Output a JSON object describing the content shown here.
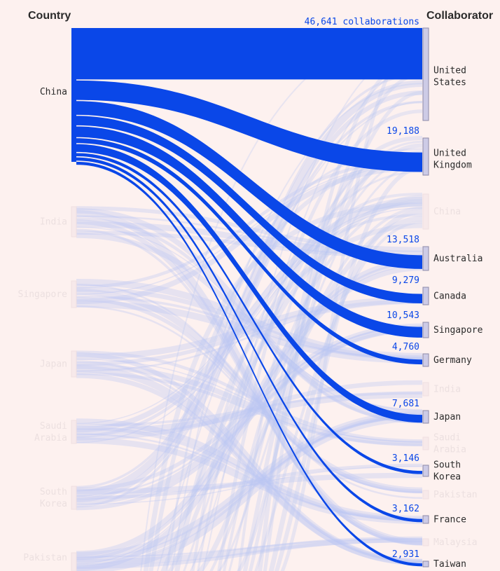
{
  "chart_data": {
    "type": "sankey",
    "headers": {
      "left": "Country",
      "right": "Collaborator"
    },
    "highlight_source": "China",
    "sources": [
      {
        "label": "China",
        "state": "active"
      },
      {
        "label": "India",
        "state": "faded"
      },
      {
        "label": "Singapore",
        "state": "faded"
      },
      {
        "label": "Japan",
        "state": "faded"
      },
      {
        "label": "Saudi\nArabia",
        "state": "faded"
      },
      {
        "label": "South\nKorea",
        "state": "faded"
      },
      {
        "label": "Pakistan",
        "state": "faded"
      }
    ],
    "targets": [
      {
        "label": "United\nStates",
        "state": "active",
        "value": 46641,
        "value_label": "46,641 collaborations"
      },
      {
        "label": "United\nKingdom",
        "state": "active",
        "value": 19188,
        "value_label": "19,188"
      },
      {
        "label": "China",
        "state": "faded"
      },
      {
        "label": "Australia",
        "state": "active",
        "value": 13518,
        "value_label": "13,518"
      },
      {
        "label": "Canada",
        "state": "active",
        "value": 9279,
        "value_label": "9,279"
      },
      {
        "label": "Singapore",
        "state": "active",
        "value": 10543,
        "value_label": "10,543"
      },
      {
        "label": "Germany",
        "state": "active",
        "value": 4760,
        "value_label": "4,760"
      },
      {
        "label": "India",
        "state": "faded"
      },
      {
        "label": "Japan",
        "state": "active",
        "value": 7681,
        "value_label": "7,681"
      },
      {
        "label": "Saudi\nArabia",
        "state": "faded"
      },
      {
        "label": "South\nKorea",
        "state": "active",
        "value": 3146,
        "value_label": "3,146"
      },
      {
        "label": "Pakistan",
        "state": "faded"
      },
      {
        "label": "France",
        "state": "active",
        "value": 3162,
        "value_label": "3,162"
      },
      {
        "label": "Malaysia",
        "state": "faded"
      },
      {
        "label": "Taiwan",
        "state": "active",
        "value": 2931,
        "value_label": "2,931"
      }
    ],
    "colors": {
      "background": "#fdf1ef",
      "active_flow": "#0a47e8",
      "faded_flow": "#b9c6f3",
      "faded_label": "#ece0e0"
    }
  }
}
